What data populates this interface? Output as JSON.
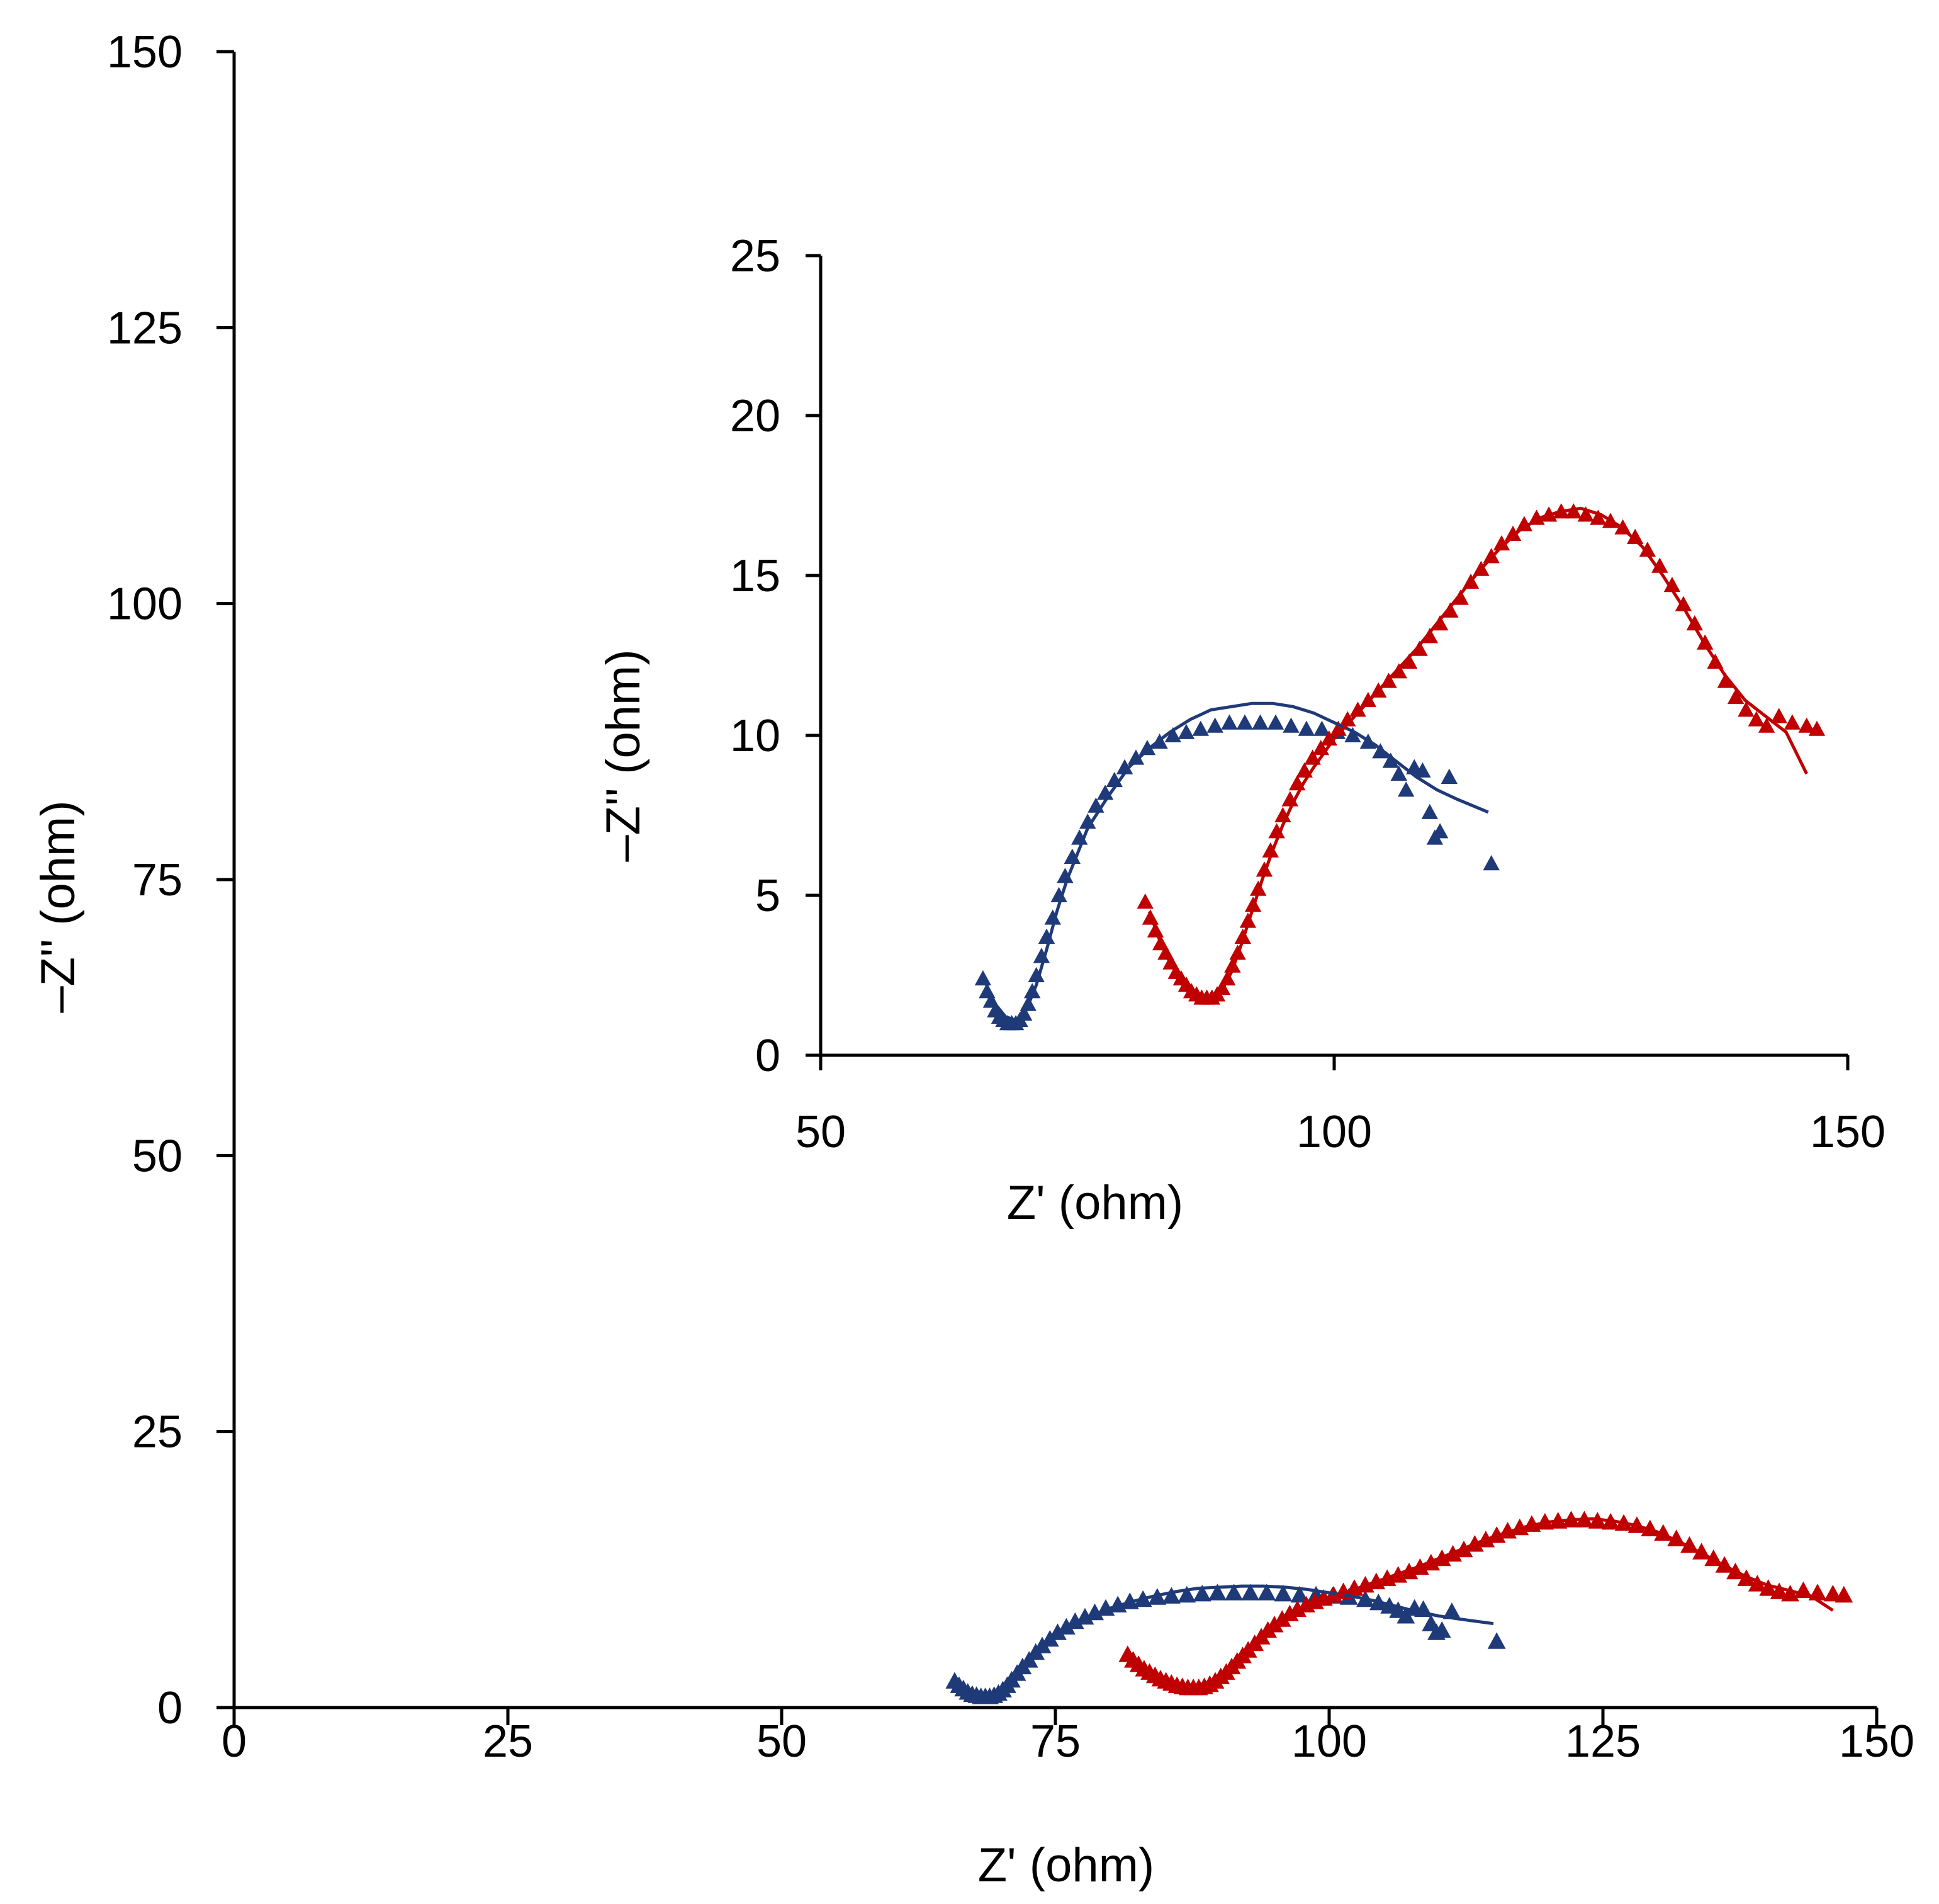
{
  "chart_data": [
    {
      "id": "main",
      "type": "scatter",
      "xlabel": "Z' (ohm)",
      "ylabel": "–Z'' (ohm)",
      "xlim": [
        0,
        150
      ],
      "ylim": [
        0,
        150
      ],
      "xticks": [
        0,
        25,
        50,
        75,
        100,
        125,
        150
      ],
      "yticks": [
        0,
        25,
        50,
        75,
        100,
        125,
        150
      ],
      "xtick_labels": [
        "0",
        "25",
        "50",
        "75",
        "100",
        "125",
        "150"
      ],
      "ytick_labels": [
        "0",
        "25",
        "50",
        "75",
        "100",
        "125",
        "150"
      ],
      "grid": false
    },
    {
      "id": "inset",
      "type": "scatter",
      "xlabel": "Z' (ohm)",
      "ylabel": "–Z'' (ohm)",
      "xlim": [
        50,
        150
      ],
      "ylim": [
        0,
        25
      ],
      "xticks": [
        50,
        100,
        150
      ],
      "yticks": [
        0,
        5,
        10,
        15,
        20,
        25
      ],
      "xtick_labels": [
        "50",
        "100",
        "150"
      ],
      "ytick_labels": [
        "0",
        "5",
        "10",
        "15",
        "20",
        "25"
      ],
      "grid": false
    }
  ],
  "series": [
    {
      "name": "blue",
      "color": "#1f3a78",
      "marker": "triangle",
      "points": [
        [
          65.8,
          2.4
        ],
        [
          66.2,
          2.0
        ],
        [
          66.6,
          1.7
        ],
        [
          67.0,
          1.4
        ],
        [
          67.4,
          1.2
        ],
        [
          67.8,
          1.1
        ],
        [
          68.2,
          1.0
        ],
        [
          68.6,
          1.0
        ],
        [
          69.0,
          1.0
        ],
        [
          69.4,
          1.1
        ],
        [
          69.8,
          1.3
        ],
        [
          70.2,
          1.6
        ],
        [
          70.6,
          2.0
        ],
        [
          71.0,
          2.5
        ],
        [
          71.5,
          3.1
        ],
        [
          72.0,
          3.7
        ],
        [
          72.6,
          4.3
        ],
        [
          73.2,
          5.0
        ],
        [
          73.8,
          5.6
        ],
        [
          74.5,
          6.2
        ],
        [
          75.2,
          6.8
        ],
        [
          76.0,
          7.3
        ],
        [
          76.8,
          7.8
        ],
        [
          77.7,
          8.2
        ],
        [
          78.6,
          8.6
        ],
        [
          79.6,
          9.0
        ],
        [
          80.7,
          9.3
        ],
        [
          81.8,
          9.6
        ],
        [
          83.0,
          9.8
        ],
        [
          84.3,
          10.0
        ],
        [
          85.6,
          10.1
        ],
        [
          87.0,
          10.2
        ],
        [
          88.4,
          10.3
        ],
        [
          89.8,
          10.4
        ],
        [
          91.3,
          10.4
        ],
        [
          92.8,
          10.4
        ],
        [
          94.3,
          10.4
        ],
        [
          95.8,
          10.3
        ],
        [
          97.3,
          10.2
        ],
        [
          98.8,
          10.2
        ],
        [
          100.3,
          10.1
        ],
        [
          101.8,
          10.0
        ],
        [
          103.3,
          9.8
        ],
        [
          104.5,
          9.5
        ],
        [
          105.5,
          9.2
        ],
        [
          106.3,
          8.8
        ],
        [
          107.0,
          8.3
        ],
        [
          107.8,
          9.0
        ],
        [
          108.6,
          8.9
        ],
        [
          109.3,
          7.6
        ],
        [
          109.8,
          6.8
        ],
        [
          110.3,
          7.0
        ],
        [
          111.2,
          8.7
        ],
        [
          115.3,
          6.0
        ]
      ],
      "fit": [
        [
          66.0,
          2.3
        ],
        [
          67.0,
          1.6
        ],
        [
          68.0,
          1.2
        ],
        [
          69.0,
          1.1
        ],
        [
          70.0,
          1.4
        ],
        [
          71.0,
          2.2
        ],
        [
          72.0,
          3.3
        ],
        [
          73.0,
          4.5
        ],
        [
          74.0,
          5.5
        ],
        [
          75.0,
          6.3
        ],
        [
          76.0,
          7.1
        ],
        [
          78.0,
          8.1
        ],
        [
          80.0,
          9.0
        ],
        [
          82.0,
          9.6
        ],
        [
          84.0,
          10.1
        ],
        [
          86.0,
          10.5
        ],
        [
          88.0,
          10.8
        ],
        [
          90.0,
          10.9
        ],
        [
          92.0,
          11.0
        ],
        [
          94.0,
          11.0
        ],
        [
          96.0,
          10.9
        ],
        [
          98.0,
          10.7
        ],
        [
          100.0,
          10.4
        ],
        [
          102.0,
          10.1
        ],
        [
          104.0,
          9.7
        ],
        [
          106.0,
          9.2
        ],
        [
          108.0,
          8.7
        ],
        [
          110.0,
          8.3
        ],
        [
          112.0,
          8.0
        ],
        [
          115.0,
          7.6
        ]
      ]
    },
    {
      "name": "red",
      "color": "#c00000",
      "marker": "triangle",
      "points": [
        [
          81.6,
          4.8
        ],
        [
          82.1,
          4.3
        ],
        [
          82.6,
          3.9
        ],
        [
          83.1,
          3.5
        ],
        [
          83.6,
          3.2
        ],
        [
          84.1,
          2.9
        ],
        [
          84.6,
          2.6
        ],
        [
          85.1,
          2.4
        ],
        [
          85.6,
          2.2
        ],
        [
          86.1,
          2.0
        ],
        [
          86.6,
          1.9
        ],
        [
          87.1,
          1.8
        ],
        [
          87.6,
          1.8
        ],
        [
          88.1,
          1.8
        ],
        [
          88.6,
          1.9
        ],
        [
          89.1,
          2.1
        ],
        [
          89.6,
          2.4
        ],
        [
          90.1,
          2.8
        ],
        [
          90.6,
          3.2
        ],
        [
          91.1,
          3.7
        ],
        [
          91.6,
          4.2
        ],
        [
          92.1,
          4.7
        ],
        [
          92.6,
          5.2
        ],
        [
          93.2,
          5.8
        ],
        [
          93.8,
          6.4
        ],
        [
          94.4,
          7.0
        ],
        [
          95.0,
          7.5
        ],
        [
          95.7,
          8.0
        ],
        [
          96.4,
          8.5
        ],
        [
          97.1,
          8.9
        ],
        [
          97.9,
          9.3
        ],
        [
          98.7,
          9.6
        ],
        [
          99.5,
          9.9
        ],
        [
          100.4,
          10.2
        ],
        [
          101.3,
          10.5
        ],
        [
          102.3,
          10.8
        ],
        [
          103.3,
          11.1
        ],
        [
          104.3,
          11.4
        ],
        [
          105.3,
          11.7
        ],
        [
          106.3,
          12.0
        ],
        [
          107.3,
          12.3
        ],
        [
          108.3,
          12.7
        ],
        [
          109.3,
          13.1
        ],
        [
          110.3,
          13.5
        ],
        [
          111.3,
          13.9
        ],
        [
          112.3,
          14.3
        ],
        [
          113.3,
          14.8
        ],
        [
          114.3,
          15.2
        ],
        [
          115.3,
          15.6
        ],
        [
          116.3,
          16.0
        ],
        [
          117.4,
          16.3
        ],
        [
          118.5,
          16.6
        ],
        [
          119.7,
          16.8
        ],
        [
          120.9,
          16.9
        ],
        [
          122.1,
          17.0
        ],
        [
          123.3,
          17.0
        ],
        [
          124.5,
          16.9
        ],
        [
          125.7,
          16.8
        ],
        [
          126.9,
          16.7
        ],
        [
          128.1,
          16.5
        ],
        [
          129.3,
          16.2
        ],
        [
          130.5,
          15.8
        ],
        [
          131.7,
          15.3
        ],
        [
          132.9,
          14.7
        ],
        [
          134.0,
          14.1
        ],
        [
          135.1,
          13.5
        ],
        [
          136.1,
          12.9
        ],
        [
          137.1,
          12.3
        ],
        [
          138.1,
          11.7
        ],
        [
          139.1,
          11.2
        ],
        [
          140.1,
          10.8
        ],
        [
          141.1,
          10.5
        ],
        [
          142.1,
          10.3
        ],
        [
          143.3,
          10.6
        ],
        [
          144.6,
          10.4
        ],
        [
          146.0,
          10.3
        ],
        [
          147.0,
          10.2
        ]
      ],
      "fit": [
        [
          82.0,
          4.5
        ],
        [
          83.0,
          3.6
        ],
        [
          84.0,
          2.9
        ],
        [
          85.0,
          2.4
        ],
        [
          86.0,
          2.0
        ],
        [
          87.0,
          1.8
        ],
        [
          88.0,
          1.8
        ],
        [
          89.0,
          2.0
        ],
        [
          90.0,
          2.6
        ],
        [
          91.0,
          3.5
        ],
        [
          92.0,
          4.5
        ],
        [
          93.0,
          5.5
        ],
        [
          94.0,
          6.4
        ],
        [
          95.0,
          7.2
        ],
        [
          96.0,
          7.9
        ],
        [
          97.0,
          8.5
        ],
        [
          98.0,
          9.0
        ],
        [
          100.0,
          9.9
        ],
        [
          102.0,
          10.6
        ],
        [
          104.0,
          11.3
        ],
        [
          106.0,
          12.0
        ],
        [
          108.0,
          12.7
        ],
        [
          110.0,
          13.5
        ],
        [
          112.0,
          14.3
        ],
        [
          114.0,
          15.1
        ],
        [
          116.0,
          15.8
        ],
        [
          118.0,
          16.4
        ],
        [
          120.0,
          16.8
        ],
        [
          122.0,
          17.0
        ],
        [
          124.0,
          17.1
        ],
        [
          126.0,
          16.9
        ],
        [
          128.0,
          16.5
        ],
        [
          130.0,
          15.9
        ],
        [
          132.0,
          15.0
        ],
        [
          134.0,
          14.0
        ],
        [
          136.0,
          12.9
        ],
        [
          138.0,
          11.9
        ],
        [
          140.0,
          11.1
        ],
        [
          142.0,
          10.6
        ],
        [
          144.0,
          10.1
        ],
        [
          146.0,
          8.8
        ]
      ]
    }
  ]
}
